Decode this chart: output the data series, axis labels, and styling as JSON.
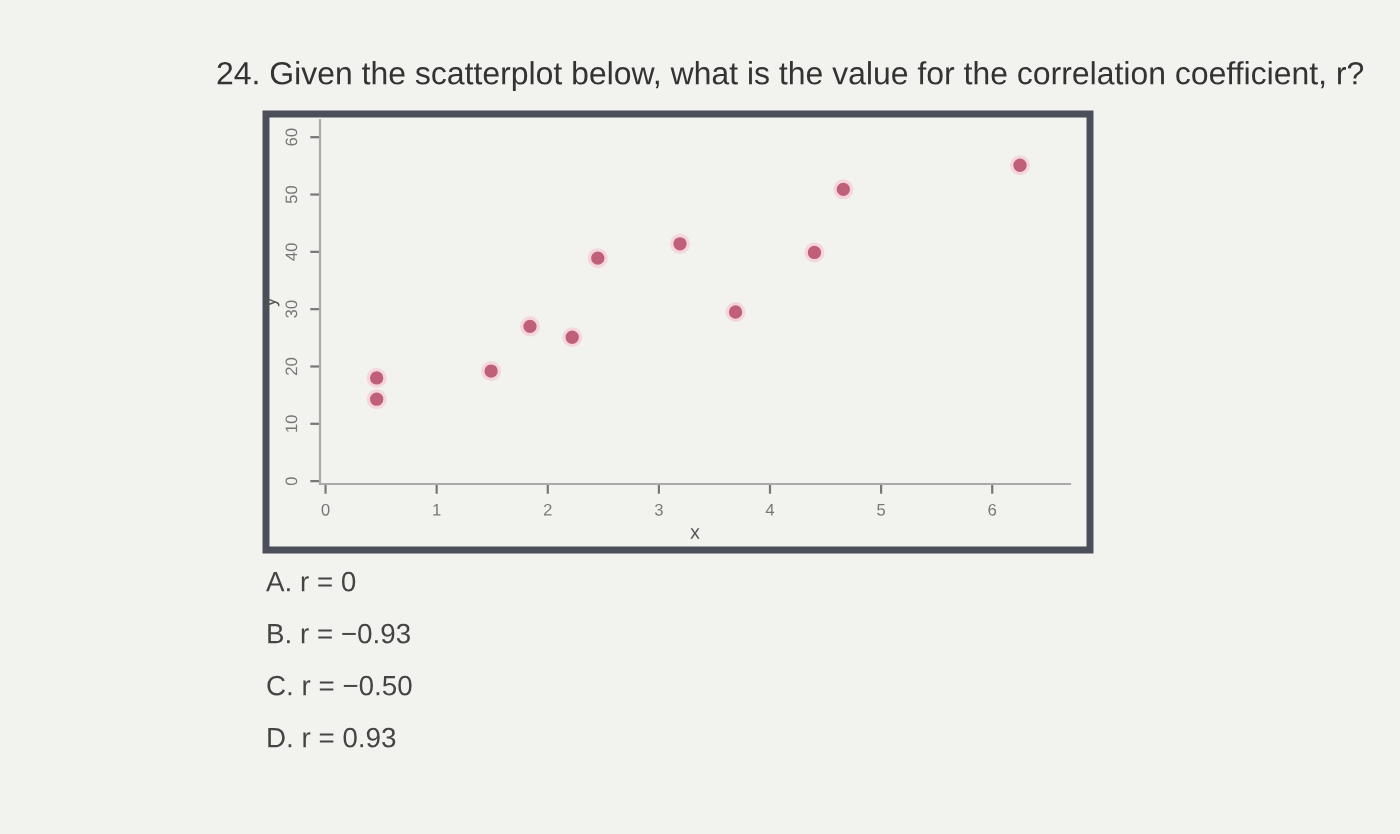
{
  "chart_data": {
    "type": "scatter",
    "title": "24. Given the scatterplot below, what is the value for the correlation coefficient, r?",
    "xlabel": "x",
    "ylabel": "y",
    "x": [
      0.46,
      0.46,
      1.49,
      1.84,
      2.22,
      2.45,
      3.19,
      3.69,
      4.4,
      4.66,
      6.25
    ],
    "values": [
      18.0,
      14.3,
      19.2,
      27.0,
      25.1,
      38.9,
      41.4,
      29.5,
      39.9,
      50.9,
      55.1
    ],
    "color": "#c06078",
    "marker": "circle",
    "grid": false,
    "xlim": [
      -0.05,
      6.7
    ],
    "xticks": [
      0,
      1,
      2,
      3,
      4,
      5,
      6
    ],
    "ylim": [
      -0.5,
      63
    ],
    "yticks": [
      0,
      10,
      20,
      30,
      40,
      50,
      60
    ],
    "annotations": [
      "A. r = 0",
      "B. r = −0.93",
      "C. r = −0.50",
      "D. r = 0.93"
    ]
  }
}
